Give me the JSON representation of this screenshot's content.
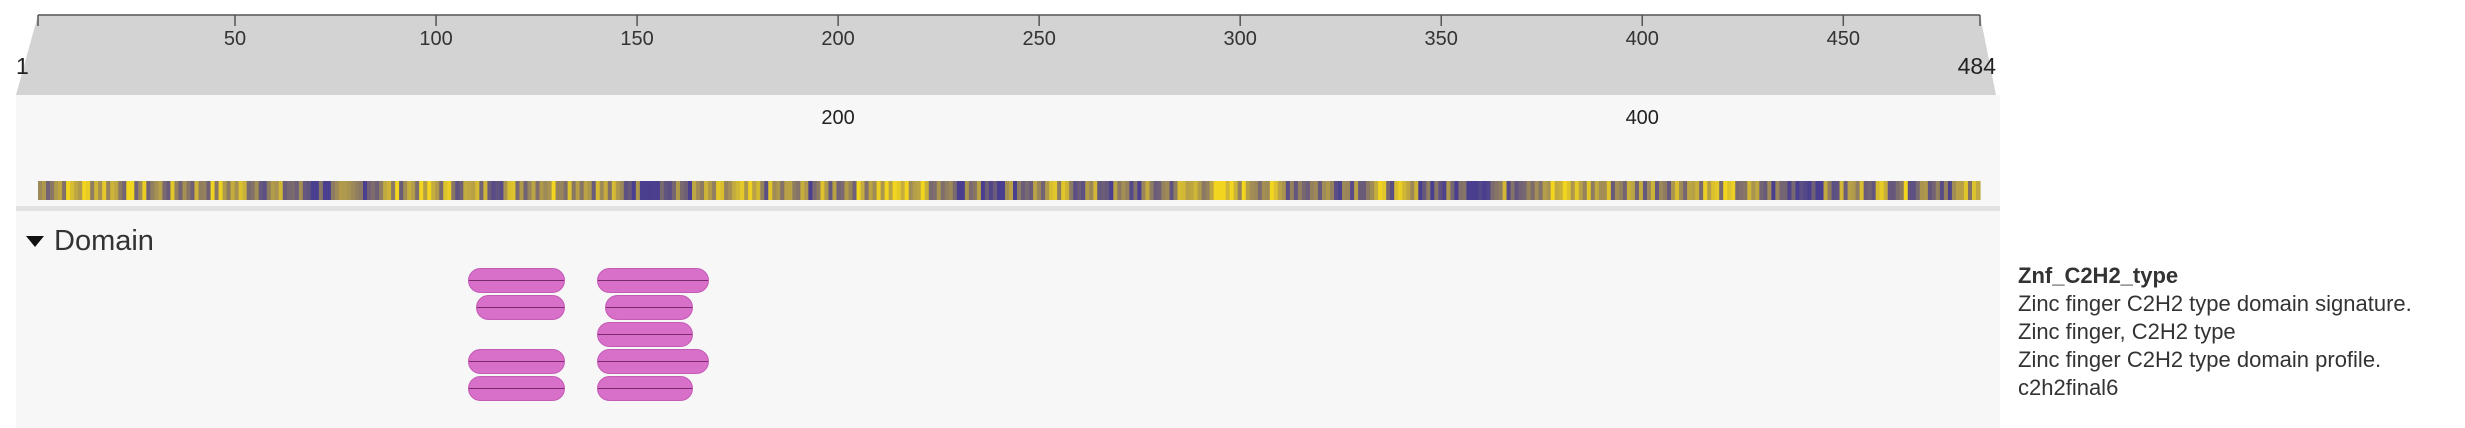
{
  "ruler": {
    "start": 1,
    "end": 484,
    "start_label": "1",
    "end_label": "484",
    "ticks": [
      50,
      100,
      150,
      200,
      250,
      300,
      350,
      400,
      450
    ],
    "zoom_ticks": [
      200,
      400
    ]
  },
  "colors": {
    "track_bg": "#d3d3d3",
    "panel_bg": "#f7f7f7",
    "heat_low": "#4a3f8f",
    "heat_high": "#f2d51f",
    "domain_fill": "#d86fc8"
  },
  "domain_section": {
    "title": "Domain",
    "expanded": true
  },
  "domains": [
    {
      "start": 108,
      "end": 132,
      "row": 0
    },
    {
      "start": 110,
      "end": 132,
      "row": 1
    },
    {
      "start": 108,
      "end": 132,
      "row": 3
    },
    {
      "start": 108,
      "end": 132,
      "row": 4
    },
    {
      "start": 140,
      "end": 168,
      "row": 0
    },
    {
      "start": 142,
      "end": 164,
      "row": 1
    },
    {
      "start": 140,
      "end": 164,
      "row": 2
    },
    {
      "start": 140,
      "end": 168,
      "row": 3
    },
    {
      "start": 140,
      "end": 164,
      "row": 4
    }
  ],
  "legend": {
    "title": "Znf_C2H2_type",
    "lines": [
      "Zinc finger C2H2 type domain signature.",
      "Zinc finger, C2H2 type",
      "Zinc finger C2H2 type domain profile.",
      "c2h2final6"
    ]
  }
}
